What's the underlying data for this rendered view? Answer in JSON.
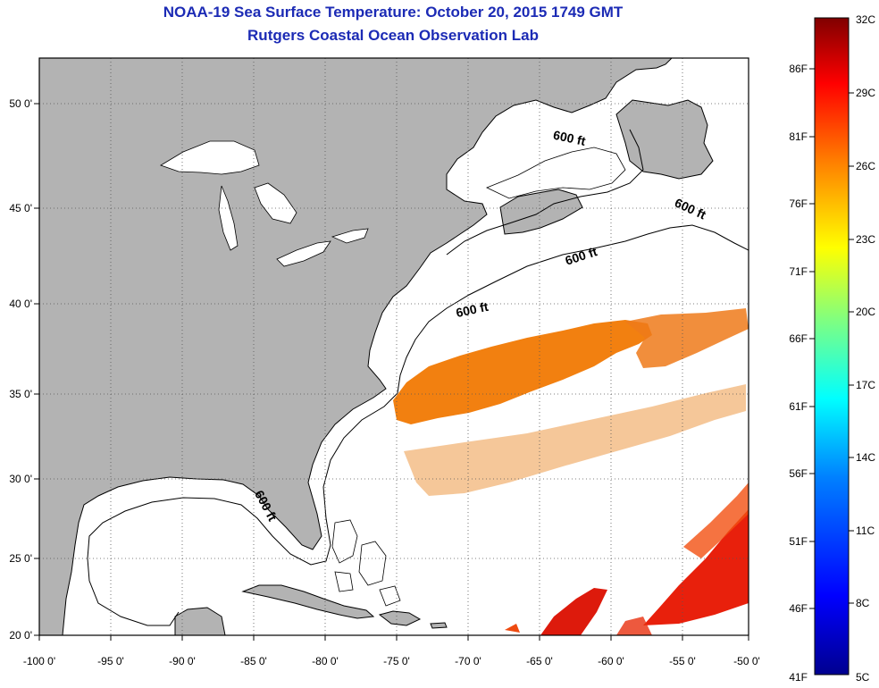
{
  "title": "NOAA-19 Sea Surface Temperature:  October 20, 2015 1749 GMT",
  "subtitle": "Rutgers Coastal Ocean Observation Lab",
  "map": {
    "lon_range": [
      -100,
      -50
    ],
    "lat_range": [
      20,
      52.5
    ],
    "lat_ticks": [
      "50 0'",
      "45 0'",
      "40 0'",
      "35 0'",
      "30 0'",
      "25 0'",
      "20 0'"
    ],
    "lon_ticks": [
      "-100 0'",
      "-95 0'",
      "-90 0'",
      "-85 0'",
      "-80 0'",
      "-75 0'",
      "-70 0'",
      "-65 0'",
      "-60 0'",
      "-55 0'",
      "-50 0'"
    ],
    "contour_labels": [
      "600 ft",
      "600 ft",
      "600 ft",
      "600 ft",
      "600 ft"
    ],
    "land_color": "#b3b3b3",
    "ocean_color": "#ffffff"
  },
  "colorbar": {
    "fahrenheit_labels": [
      "86F",
      "81F",
      "76F",
      "71F",
      "66F",
      "61F",
      "56F",
      "51F",
      "46F",
      "41F"
    ],
    "celsius_labels": [
      "32C",
      "29C",
      "26C",
      "23C",
      "20C",
      "17C",
      "14C",
      "11C",
      "8C",
      "5C"
    ],
    "range_c": [
      5,
      32
    ],
    "colors": [
      "#00008f",
      "#0000ff",
      "#0080ff",
      "#00ffff",
      "#80ff80",
      "#ffff00",
      "#ff8000",
      "#ff0000",
      "#800000"
    ]
  }
}
